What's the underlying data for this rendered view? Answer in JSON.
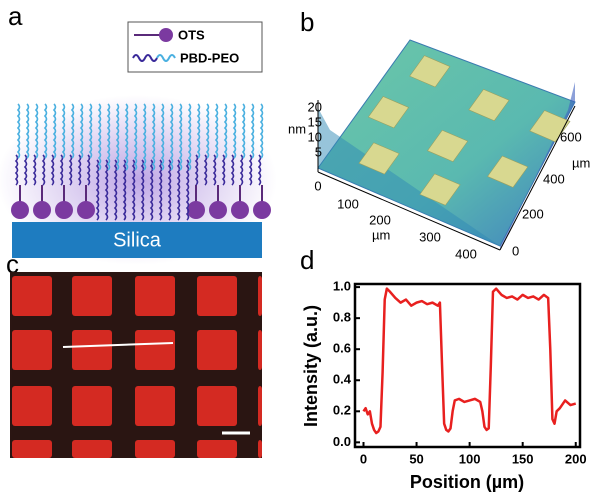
{
  "panel_labels": [
    "a",
    "b",
    "c",
    "d"
  ],
  "schematic": {
    "legend": [
      "OTS",
      "PBD-PEO"
    ],
    "substrate": "Silica"
  },
  "surface_plot": {
    "z_label": "nm",
    "z_ticks": [
      5,
      10,
      15,
      20
    ],
    "x_ticks": [
      0,
      100,
      200,
      300,
      400
    ],
    "x_label": "µm",
    "y_ticks": [
      0,
      200,
      400,
      600
    ],
    "y_label": "µm"
  },
  "chart_data": {
    "type": "line",
    "xlabel": "Position (µm)",
    "ylabel": "Intensity (a.u.)",
    "x": [
      0,
      2,
      4,
      6,
      8,
      10,
      12,
      14,
      16,
      18,
      20,
      22,
      25,
      30,
      35,
      40,
      45,
      50,
      55,
      60,
      65,
      70,
      72,
      74,
      76,
      78,
      80,
      82,
      84,
      86,
      90,
      95,
      100,
      105,
      110,
      112,
      114,
      116,
      118,
      120,
      122,
      125,
      130,
      135,
      140,
      145,
      150,
      155,
      160,
      165,
      170,
      174,
      176,
      178,
      180,
      182,
      185,
      190,
      195,
      200
    ],
    "values": [
      0.2,
      0.22,
      0.18,
      0.2,
      0.12,
      0.08,
      0.06,
      0.07,
      0.1,
      0.45,
      0.92,
      0.99,
      0.97,
      0.93,
      0.9,
      0.92,
      0.88,
      0.9,
      0.91,
      0.89,
      0.9,
      0.88,
      0.9,
      0.5,
      0.12,
      0.08,
      0.07,
      0.09,
      0.2,
      0.27,
      0.28,
      0.26,
      0.27,
      0.28,
      0.26,
      0.2,
      0.1,
      0.08,
      0.09,
      0.5,
      0.97,
      0.99,
      0.95,
      0.93,
      0.94,
      0.92,
      0.95,
      0.93,
      0.94,
      0.92,
      0.95,
      0.93,
      0.6,
      0.15,
      0.12,
      0.2,
      0.22,
      0.27,
      0.24,
      0.25
    ],
    "color": "#e8201f",
    "xlim": [
      -8,
      204
    ],
    "xticks": [
      0,
      50,
      100,
      150,
      200
    ],
    "ylim": [
      -0.03,
      1.02
    ],
    "yticks": [
      {
        "value": 0,
        "label": "0.0"
      },
      0.2,
      0.4,
      0.6,
      0.8,
      {
        "value": 1,
        "label": "1.0"
      }
    ]
  }
}
